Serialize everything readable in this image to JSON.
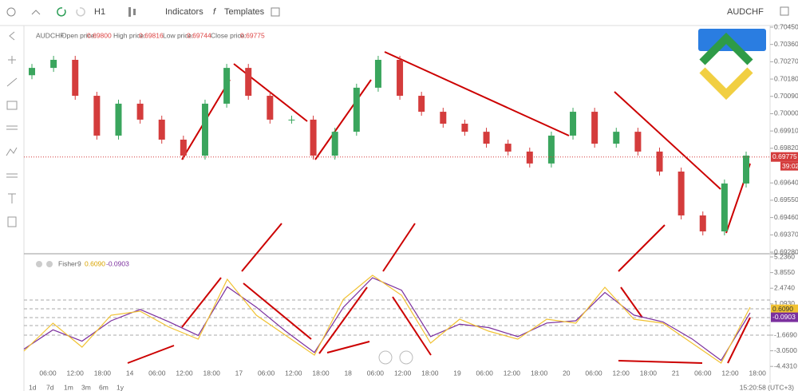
{
  "toolbar": {
    "interval": "H1",
    "indicators": "Indicators",
    "templates": "Templates",
    "symbol": "AUDCHF"
  },
  "legend": {
    "symbol": "AUDCHF",
    "open_label": "Open price:",
    "open": "0.69800",
    "high_label": "High price:",
    "high": "0.69816",
    "low_label": "Low price:",
    "low": "0.69744",
    "close_label": "Close price:",
    "close": "0.69775"
  },
  "price_panel": {
    "ylim": [
      0.6928,
      0.7045
    ],
    "ticks": [
      {
        "value": 0.7045,
        "label": "0.70450"
      },
      {
        "value": 0.7036,
        "label": "0.70360"
      },
      {
        "value": 0.7027,
        "label": "0.70270"
      },
      {
        "value": 0.7018,
        "label": "0.70180"
      },
      {
        "value": 0.7009,
        "label": "0.70090"
      },
      {
        "value": 0.7,
        "label": "0.70000"
      },
      {
        "value": 0.6991,
        "label": "0.69910"
      },
      {
        "value": 0.6982,
        "label": "0.69820"
      },
      {
        "value": 0.6964,
        "label": "0.69640"
      },
      {
        "value": 0.6955,
        "label": "0.69550"
      },
      {
        "value": 0.6946,
        "label": "0.69460"
      },
      {
        "value": 0.6937,
        "label": "0.69370"
      },
      {
        "value": 0.6928,
        "label": "0.69280"
      }
    ],
    "current_price": {
      "value": 0.69775,
      "label": "0.69775"
    },
    "countdown": "39:02",
    "open": [
      0.702,
      0.70238,
      0.7028,
      0.70093,
      0.69886,
      0.70052,
      0.69969,
      0.69865,
      0.69782,
      0.70052,
      0.70238,
      0.70093,
      0.69969,
      0.69969,
      0.69782,
      0.69906,
      0.70135,
      0.7028,
      0.70093,
      0.7001,
      0.69948,
      0.69906,
      0.69844,
      0.69803,
      0.69741,
      0.69886,
      0.7001,
      0.69844,
      0.69906,
      0.69803,
      0.69699,
      0.69471,
      0.69388,
      0.69637
    ],
    "close": [
      0.70238,
      0.7028,
      0.70093,
      0.69886,
      0.70052,
      0.69969,
      0.69865,
      0.69782,
      0.70052,
      0.70238,
      0.70093,
      0.69969,
      0.69969,
      0.69782,
      0.69906,
      0.70135,
      0.7028,
      0.70093,
      0.7001,
      0.69948,
      0.69906,
      0.69844,
      0.69803,
      0.69741,
      0.69886,
      0.7001,
      0.69844,
      0.69906,
      0.69803,
      0.69699,
      0.69471,
      0.69388,
      0.69637,
      0.69782
    ]
  },
  "fisher_panel": {
    "name": "Fisher",
    "period": "9",
    "fisher_label": "0.6090",
    "trigger_label": "-0.0903",
    "ylim": [
      -4.431,
      5.236
    ],
    "ticks": [
      {
        "value": 5.236,
        "label": "5.2360"
      },
      {
        "value": 3.855,
        "label": "3.8550"
      },
      {
        "value": 2.474,
        "label": "2.4740"
      },
      {
        "value": 1.093,
        "label": "1.0930"
      },
      {
        "value": -1.669,
        "label": "-1.6690"
      },
      {
        "value": -3.05,
        "label": "-3.0500"
      },
      {
        "value": -4.431,
        "label": "-4.4310"
      }
    ],
    "fisher_tag": {
      "value": 0.609,
      "label": "0.6090"
    },
    "trigger_tag": {
      "value": -0.0903,
      "label": "-0.0903"
    },
    "fisher": [
      -3.078,
      -0.612,
      -2.726,
      0.092,
      0.445,
      -0.964,
      -2.021,
      3.263,
      0.092,
      -1.669,
      -3.431,
      1.502,
      3.615,
      1.854,
      -2.374,
      -0.26,
      -1.317,
      -2.021,
      -0.26,
      -0.612,
      2.559,
      -0.26,
      -0.612,
      -2.374,
      -4.135,
      0.797
    ],
    "trigger": [
      -2.9,
      -1.2,
      -2.2,
      -0.4,
      0.6,
      -0.5,
      -1.7,
      2.6,
      0.8,
      -1.3,
      -3.2,
      0.8,
      3.4,
      2.3,
      -1.8,
      -0.7,
      -1.0,
      -1.8,
      -0.6,
      -0.4,
      2.1,
      0.1,
      -0.5,
      -2.0,
      -3.9,
      0.3
    ]
  },
  "time_axis": [
    "06:00",
    "12:00",
    "18:00",
    "14",
    "06:00",
    "12:00",
    "18:00",
    "17",
    "06:00",
    "12:00",
    "18:00",
    "18",
    "06:00",
    "12:00",
    "18:00",
    "19",
    "06:00",
    "12:00",
    "18:00",
    "20",
    "06:00",
    "12:00",
    "18:00",
    "21",
    "06:00",
    "12:00",
    "18:00"
  ],
  "footer": {
    "ranges": [
      "1d",
      "7d",
      "1m",
      "3m",
      "6m",
      "1y"
    ],
    "clock": "15:20:58 (UTC+3)"
  }
}
